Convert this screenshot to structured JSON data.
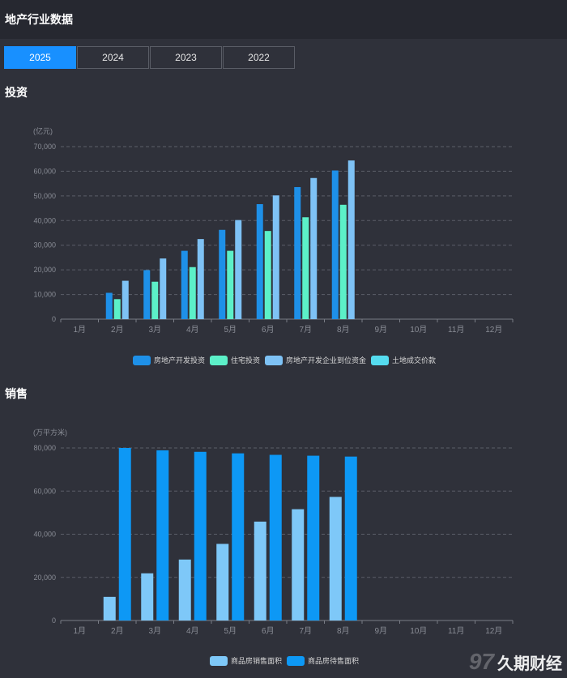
{
  "header": {
    "title": "地产行业数据"
  },
  "tabs": [
    {
      "label": "2025",
      "active": true
    },
    {
      "label": "2024",
      "active": false
    },
    {
      "label": "2023",
      "active": false
    },
    {
      "label": "2022",
      "active": false
    }
  ],
  "sections": {
    "investment": "投资",
    "sales": "销售"
  },
  "watermark": {
    "text": "久期财经"
  },
  "colors": {
    "accent": "#1890ff",
    "series": [
      "#1e90e8",
      "#5cf0c8",
      "#7ec2f5",
      "#55dcef"
    ],
    "sales_series": [
      "#7ec8f8",
      "#0d98f5"
    ]
  },
  "chart_data": [
    {
      "type": "bar",
      "unit": "(亿元)",
      "categories": [
        "1月",
        "2月",
        "3月",
        "4月",
        "5月",
        "6月",
        "7月",
        "8月",
        "9月",
        "10月",
        "11月",
        "12月"
      ],
      "ylim": [
        0,
        70000
      ],
      "yticks": [
        "0",
        "10,000",
        "20,000",
        "30,000",
        "40,000",
        "50,000",
        "60,000",
        "70,000"
      ],
      "grid": true,
      "legend_position": "bottom",
      "series": [
        {
          "name": "房地产开发投资",
          "values": [
            null,
            10680,
            19900,
            27730,
            36230,
            46660,
            53580,
            60310,
            null,
            null,
            null,
            null
          ]
        },
        {
          "name": "住宅投资",
          "values": [
            null,
            8120,
            15200,
            21110,
            27730,
            35770,
            41330,
            46400,
            null,
            null,
            null,
            null
          ]
        },
        {
          "name": "房地产开发企业到位资金",
          "values": [
            null,
            15580,
            24620,
            32490,
            40200,
            50200,
            57260,
            64380,
            null,
            null,
            null,
            null
          ]
        },
        {
          "name": "土地成交价款",
          "values": [
            null,
            null,
            null,
            null,
            null,
            null,
            null,
            null,
            null,
            null,
            null,
            null
          ]
        }
      ]
    },
    {
      "type": "bar",
      "unit": "(万平方米)",
      "categories": [
        "1月",
        "2月",
        "3月",
        "4月",
        "5月",
        "6月",
        "7月",
        "8月",
        "9月",
        "10月",
        "11月",
        "12月"
      ],
      "ylim": [
        0,
        80000
      ],
      "yticks": [
        "0",
        "20,000",
        "40,000",
        "60,000",
        "80,000"
      ],
      "grid": true,
      "legend_position": "bottom",
      "series": [
        {
          "name": "商品房销售面积",
          "values": [
            null,
            10950,
            21870,
            28260,
            35520,
            45850,
            51600,
            57300,
            null,
            null,
            null,
            null
          ]
        },
        {
          "name": "商品房待售面积",
          "values": [
            null,
            80000,
            78900,
            78200,
            77500,
            76800,
            76400,
            76000,
            null,
            null,
            null,
            null
          ]
        }
      ]
    }
  ]
}
